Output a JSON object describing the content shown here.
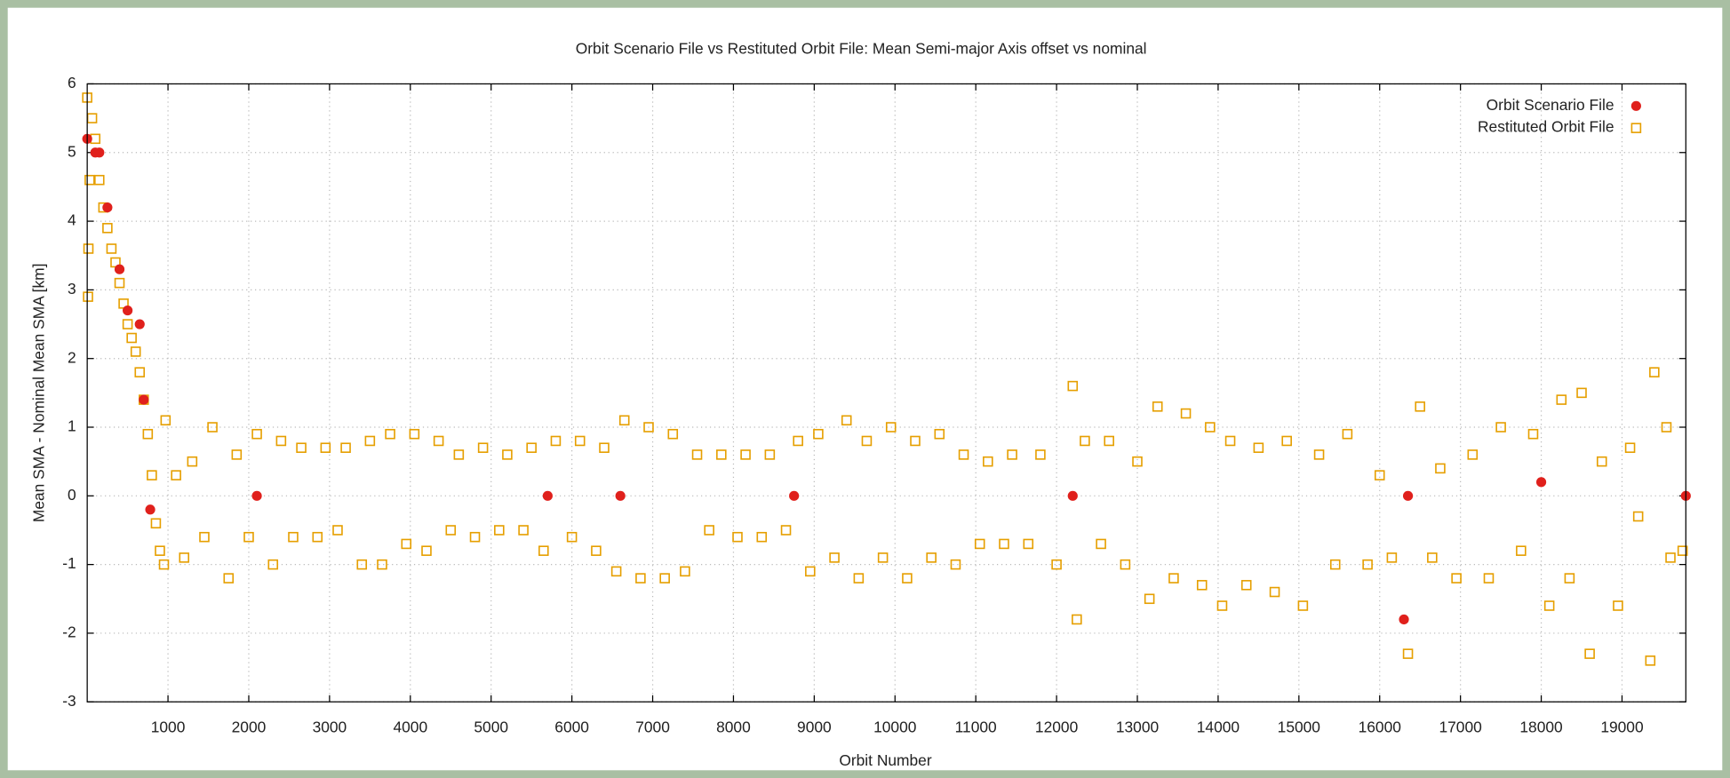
{
  "chart_data": {
    "type": "scatter",
    "title": "Orbit Scenario File vs Restituted Orbit File: Mean Semi-major Axis offset vs nominal",
    "x_label": "Orbit Number",
    "y_label": "Mean SMA - Nominal Mean SMA [km]",
    "xlim": [
      0,
      19790
    ],
    "ylim": [
      -3,
      6
    ],
    "xticks": [
      1000,
      2000,
      3000,
      4000,
      5000,
      6000,
      7000,
      8000,
      9000,
      10000,
      11000,
      12000,
      13000,
      14000,
      15000,
      16000,
      17000,
      18000,
      19000
    ],
    "yticks": [
      -3,
      -2,
      -1,
      0,
      1,
      2,
      3,
      4,
      5,
      6
    ],
    "grid": true,
    "legend": "upper right",
    "series": [
      {
        "name": "Orbit Scenario File",
        "color": "#e0201c",
        "marker": "circle",
        "x": [
          0,
          100,
          150,
          250,
          400,
          500,
          650,
          700,
          780,
          2100,
          5700,
          6600,
          8750,
          12200,
          16300,
          16350,
          18000,
          19790
        ],
        "values": [
          5.2,
          5.0,
          5.0,
          4.2,
          3.3,
          2.7,
          2.5,
          1.4,
          -0.2,
          0,
          0,
          0,
          0,
          0,
          -1.8,
          0,
          0.2,
          0
        ]
      },
      {
        "name": "Restituted Orbit File",
        "color": "#e69f00",
        "marker": "square",
        "x": [
          0,
          10,
          15,
          30,
          60,
          100,
          150,
          200,
          250,
          300,
          350,
          400,
          450,
          500,
          550,
          600,
          650,
          700,
          750,
          800,
          850,
          900,
          950,
          970,
          1100,
          1200,
          1300,
          1450,
          1550,
          1750,
          1850,
          2000,
          2100,
          2300,
          2400,
          2550,
          2650,
          2850,
          2950,
          3100,
          3200,
          3400,
          3500,
          3650,
          3750,
          3950,
          4050,
          4200,
          4350,
          4500,
          4600,
          4800,
          4900,
          5100,
          5200,
          5400,
          5500,
          5650,
          5800,
          6000,
          6100,
          6300,
          6400,
          6550,
          6650,
          6850,
          6950,
          7150,
          7250,
          7400,
          7550,
          7700,
          7850,
          8050,
          8150,
          8350,
          8450,
          8650,
          8800,
          8950,
          9050,
          9250,
          9400,
          9550,
          9650,
          9850,
          9950,
          10150,
          10250,
          10450,
          10550,
          10750,
          10850,
          11050,
          11150,
          11350,
          11450,
          11650,
          11800,
          12000,
          12200,
          12250,
          12350,
          12550,
          12650,
          12850,
          13000,
          13150,
          13250,
          13450,
          13600,
          13800,
          13900,
          14050,
          14150,
          14350,
          14500,
          14700,
          14850,
          15050,
          15250,
          15450,
          15600,
          15850,
          16000,
          16150,
          16350,
          16500,
          16650,
          16750,
          16950,
          17150,
          17350,
          17500,
          17750,
          17900,
          18100,
          18250,
          18350,
          18500,
          18600,
          18750,
          18950,
          19100,
          19200,
          19350,
          19400,
          19550,
          19600,
          19750
        ],
        "values": [
          5.8,
          2.9,
          3.6,
          4.6,
          5.5,
          5.2,
          4.6,
          4.2,
          3.9,
          3.6,
          3.4,
          3.1,
          2.8,
          2.5,
          2.3,
          2.1,
          1.8,
          1.4,
          0.9,
          0.3,
          -0.4,
          -0.8,
          -1.0,
          1.1,
          0.3,
          -0.9,
          0.5,
          -0.6,
          1.0,
          -1.2,
          0.6,
          -0.6,
          0.9,
          -1.0,
          0.8,
          -0.6,
          0.7,
          -0.6,
          0.7,
          -0.5,
          0.7,
          -1.0,
          0.8,
          -1.0,
          0.9,
          -0.7,
          0.9,
          -0.8,
          0.8,
          -0.5,
          0.6,
          -0.6,
          0.7,
          -0.5,
          0.6,
          -0.5,
          0.7,
          -0.8,
          0.8,
          -0.6,
          0.8,
          -0.8,
          0.7,
          -1.1,
          1.1,
          -1.2,
          1.0,
          -1.2,
          0.9,
          -1.1,
          0.6,
          -0.5,
          0.6,
          -0.6,
          0.6,
          -0.6,
          0.6,
          -0.5,
          0.8,
          -1.1,
          0.9,
          -0.9,
          1.1,
          -1.2,
          0.8,
          -0.9,
          1.0,
          -1.2,
          0.8,
          -0.9,
          0.9,
          -1.0,
          0.6,
          -0.7,
          0.5,
          -0.7,
          0.6,
          -0.7,
          0.6,
          -1.0,
          1.6,
          -1.8,
          0.8,
          -0.7,
          0.8,
          -1.0,
          0.5,
          -1.5,
          1.3,
          -1.2,
          1.2,
          -1.3,
          1.0,
          -1.6,
          0.8,
          -1.3,
          0.7,
          -1.4,
          0.8,
          -1.6,
          0.6,
          -1.0,
          0.9,
          -1.0,
          0.3,
          -0.9,
          -2.3,
          1.3,
          -0.9,
          0.4,
          -1.2,
          0.6,
          -1.2,
          1.0,
          -0.8,
          0.9,
          -1.6,
          1.4,
          -1.2,
          1.5,
          -2.3,
          0.5,
          -1.6,
          0.7,
          -0.3,
          -2.4,
          1.8,
          1.0,
          -0.9,
          -0.8
        ]
      }
    ]
  }
}
